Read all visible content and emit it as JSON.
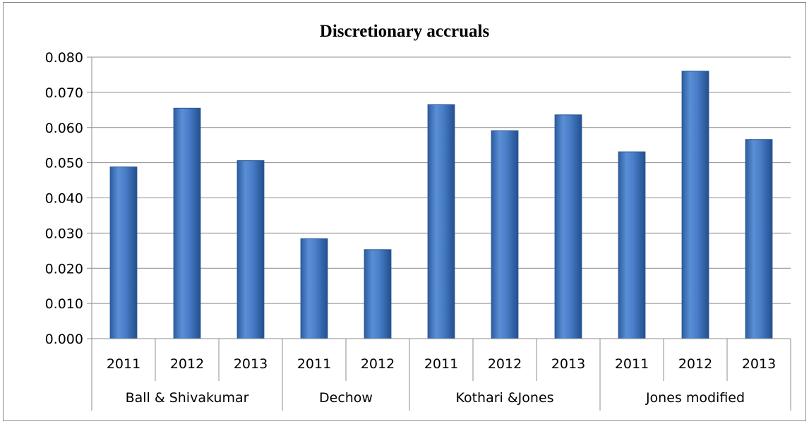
{
  "chart_data": {
    "type": "bar",
    "title": "Discretionary accruals",
    "xlabel": "",
    "ylabel": "",
    "ylim": [
      0,
      0.08
    ],
    "yticks": [
      "0.000",
      "0.010",
      "0.020",
      "0.030",
      "0.040",
      "0.050",
      "0.060",
      "0.070",
      "0.080"
    ],
    "grid": true,
    "legend": "none",
    "bar_color": "#3f78c7",
    "groups": [
      {
        "name": "Ball & Shivakumar",
        "categories": [
          "2011",
          "2012",
          "2013"
        ],
        "values": [
          0.0488,
          0.0655,
          0.0506
        ]
      },
      {
        "name": "Dechow",
        "categories": [
          "2011",
          "2012"
        ],
        "values": [
          0.0284,
          0.0253
        ]
      },
      {
        "name": "Kothari &Jones",
        "categories": [
          "2011",
          "2012",
          "2013"
        ],
        "values": [
          0.0665,
          0.0591,
          0.0636
        ]
      },
      {
        "name": "Jones modified",
        "categories": [
          "2011",
          "2012",
          "2013"
        ],
        "values": [
          0.0531,
          0.076,
          0.0566
        ]
      }
    ]
  }
}
